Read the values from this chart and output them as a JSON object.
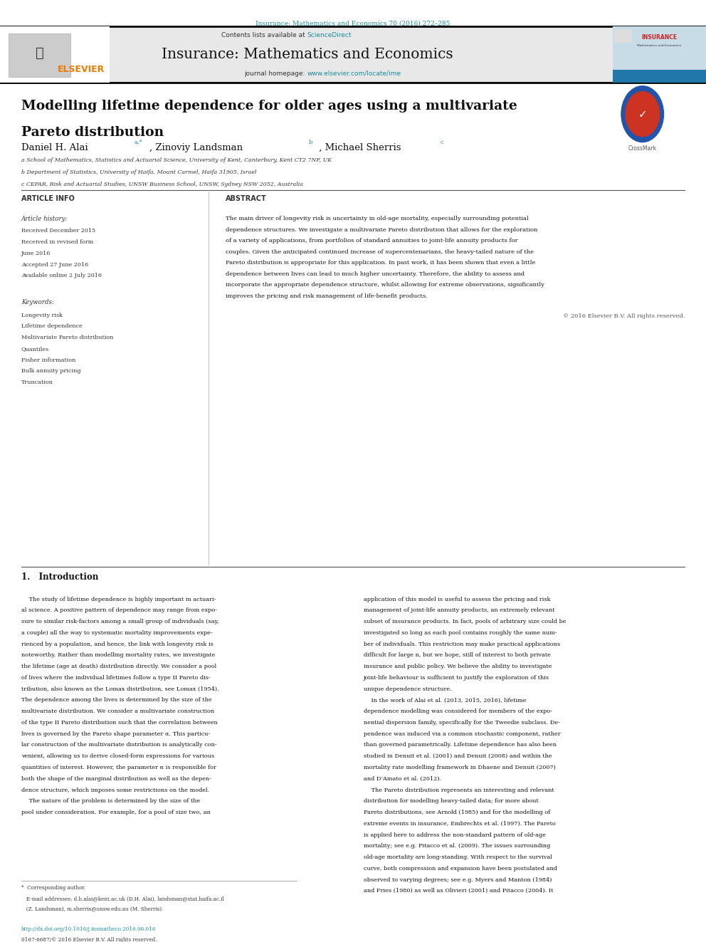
{
  "page_bg": "#ffffff",
  "header_journal_ref": "Insurance: Mathematics and Economics 70 (2016) 272–285",
  "header_journal_color": "#1a8ca0",
  "journal_header_bg": "#e8e8e8",
  "journal_title": "Insurance: Mathematics and Economics",
  "journal_homepage_text": "journal homepage: ",
  "journal_homepage_url": "www.elsevier.com/locate/ime",
  "elsevier_color": "#f07800",
  "sciencedirect_color": "#1a8ca0",
  "paper_title_line1": "Modelling lifetime dependence for older ages using a multivariate",
  "paper_title_line2": "Pareto distribution",
  "section_article_info": "ARTICLE INFO",
  "article_history_label": "Article history:",
  "received1": "Received December 2015",
  "received2": "Received in revised form",
  "june2016": "June 2016",
  "accepted": "Accepted 27 June 2016",
  "available": "Available online 2 July 2016",
  "keywords_label": "Keywords:",
  "keywords": [
    "Longevity risk",
    "Lifetime dependence",
    "Multivariate Pareto distribution",
    "Quantiles",
    "Fisher information",
    "Bulk annuity pricing",
    "Truncation"
  ],
  "section_abstract": "ABSTRACT",
  "abstract_lines": [
    "The main driver of longevity risk is uncertainty in old-age mortality, especially surrounding potential",
    "dependence structures. We investigate a multivariate Pareto distribution that allows for the exploration",
    "of a variety of applications, from portfolios of standard annuities to joint-life annuity products for",
    "couples. Given the anticipated continued increase of supercentenarians, the heavy-tailed nature of the",
    "Pareto distribution is appropriate for this application. In past work, it has been shown that even a little",
    "dependence between lives can lead to much higher uncertainty. Therefore, the ability to assess and",
    "incorporate the appropriate dependence structure, whilst allowing for extreme observations, significantly",
    "improves the pricing and risk management of life-benefit products."
  ],
  "abstract_copyright": "© 2016 Elsevier B.V. All rights reserved.",
  "intro_title": "1.   Introduction",
  "col1_lines": [
    "    The study of lifetime dependence is highly important in actuari-",
    "al science. A positive pattern of dependence may range from expo-",
    "sure to similar risk-factors among a small group of individuals (say,",
    "a couple) all the way to systematic mortality improvements expe-",
    "rienced by a population, and hence, the link with longevity risk is",
    "noteworthy. Rather than modelling mortality rates, we investigate",
    "the lifetime (age at death) distribution directly. We consider a pool",
    "of lives where the individual lifetimes follow a type II Pareto dis-",
    "tribution, also known as the Lomax distribution, see Lomax (1954).",
    "The dependence among the lives is determined by the size of the",
    "multivariate distribution. We consider a multivariate construction",
    "of the type II Pareto distribution such that the correlation between",
    "lives is governed by the Pareto shape parameter α. This particu-",
    "lar construction of the multivariate distribution is analytically con-",
    "venient, allowing us to derive closed-form expressions for various",
    "quantities of interest. However, the parameter α is responsible for",
    "both the shape of the marginal distribution as well as the depen-",
    "dence structure, which imposes some restrictions on the model.",
    "    The nature of the problem is determined by the size of the",
    "pool under consideration. For example, for a pool of size two, an"
  ],
  "col2_lines": [
    "application of this model is useful to assess the pricing and risk",
    "management of joint-life annuity products, an extremely relevant",
    "subset of insurance products. In fact, pools of arbitrary size could be",
    "investigated so long as each pool contains roughly the same num-",
    "ber of individuals. This restriction may make practical applications",
    "difficult for large n, but we hope, still of interest to both private",
    "insurance and public policy. We believe the ability to investigate",
    "joint-life behaviour is sufficient to justify the exploration of this",
    "unique dependence structure.",
    "    In the work of Alai et al. (2013, 2015, 2016), lifetime",
    "dependence modelling was considered for members of the expo-",
    "nential dispersion family, specifically for the Tweedie subclass. De-",
    "pendence was induced via a common stochastic component, rather",
    "than governed parametrically. Lifetime dependence has also been",
    "studied in Denuit et al. (2001) and Denuit (2008) and within the",
    "mortality rate modelling framework in Dhaene and Denuit (2007)",
    "and D’Amato et al. (2012).",
    "    The Pareto distribution represents an interesting and relevant",
    "distribution for modelling heavy-tailed data; for more about",
    "Pareto distributions, see Arnold (1985) and for the modelling of",
    "extreme events in insurance, Embrechts et al. (1997). The Pareto",
    "is applied here to address the non-standard pattern of old-age",
    "mortality; see e.g. Pitacco et al. (2009). The issues surrounding",
    "old-age mortality are long-standing. With respect to the survival",
    "curve, both compression and expansion have been postulated and",
    "observed to varying degrees; see e.g. Myers and Manton (1984)",
    "and Fries (1980) as well as Olivieri (2001) and Pitacco (2004). It"
  ],
  "affil_a": "a School of Mathematics, Statistics and Actuarial Science, University of Kent, Canterbury, Kent CT2 7NF, UK",
  "affil_b": "b Department of Statistics, University of Haifa, Mount Carmel, Haifa 31905, Israel",
  "affil_c": "c CEPAR, Risk and Actuarial Studies, UNSW Business School, UNSW, Sydney NSW 2052, Australia",
  "fn_lines": [
    "*  Corresponding author.",
    "   E-mail addresses: d.h.alai@kent.ac.uk (D.H. Alai), landsman@stat.haifa.ac.il",
    "   (Z. Landsman), m.sherris@unsw.edu.au (M. Sherris).",
    "",
    "http://dx.doi.org/10.1016/j.insmatheco.2016.06.016",
    "0167-6687/© 2016 Elsevier B.V. All rights reserved."
  ],
  "link_color": "#1a8ca0",
  "text_dark": "#111111",
  "text_mid": "#333333",
  "text_light": "#555555"
}
